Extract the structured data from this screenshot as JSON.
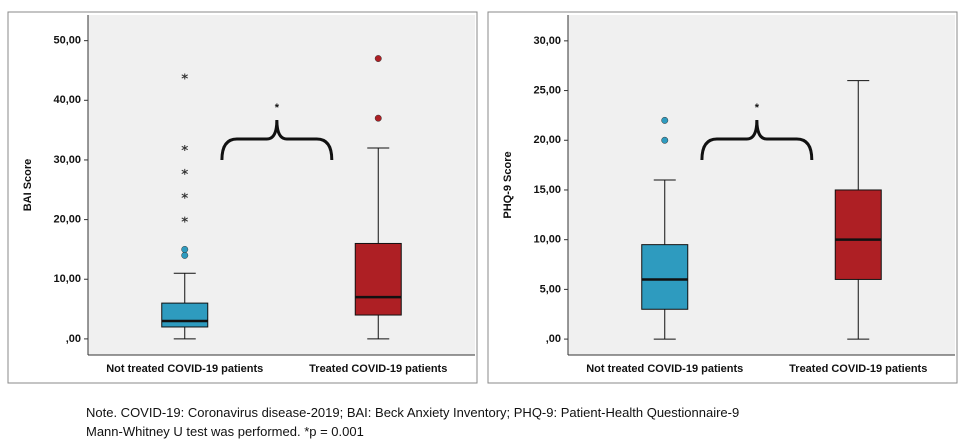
{
  "chart_data": [
    {
      "type": "box",
      "ylabel": "BAI Score",
      "categories": [
        "Not treated COVID-19 patients",
        "Treated COVID-19 patients"
      ],
      "colors": [
        "#2e9bbf",
        "#ae1f24"
      ],
      "ylim": [
        -2.7,
        54.3
      ],
      "yticks": [
        {
          "value": 0,
          "label": ",00"
        },
        {
          "value": 10,
          "label": "10,00"
        },
        {
          "value": 20,
          "label": "20,00"
        },
        {
          "value": 30,
          "label": "30,00"
        },
        {
          "value": 40,
          "label": "40,00"
        },
        {
          "value": 50,
          "label": "50,00"
        }
      ],
      "boxes": [
        {
          "low": 0,
          "q1": 2,
          "median": 3,
          "q3": 6,
          "high": 11,
          "outliers": [
            14,
            15
          ],
          "extremes": [
            20,
            24,
            28,
            32,
            44
          ]
        },
        {
          "low": 0,
          "q1": 4,
          "median": 7,
          "q3": 16,
          "high": 32,
          "outliers": [
            37,
            47
          ]
        }
      ],
      "annotation": "*"
    },
    {
      "type": "box",
      "ylabel": "PHQ-9 Score",
      "categories": [
        "Not treated COVID-19 patients",
        "Treated COVID-19 patients"
      ],
      "colors": [
        "#2e9bbf",
        "#ae1f24"
      ],
      "ylim": [
        -1.6,
        32.6
      ],
      "yticks": [
        {
          "value": 0,
          "label": ",00"
        },
        {
          "value": 5,
          "label": "5,00"
        },
        {
          "value": 10,
          "label": "10,00"
        },
        {
          "value": 15,
          "label": "15,00"
        },
        {
          "value": 20,
          "label": "20,00"
        },
        {
          "value": 25,
          "label": "25,00"
        },
        {
          "value": 30,
          "label": "30,00"
        }
      ],
      "boxes": [
        {
          "low": 0,
          "q1": 3,
          "median": 6,
          "q3": 9.5,
          "high": 16,
          "outliers": [
            20,
            22
          ]
        },
        {
          "low": 0,
          "q1": 6,
          "median": 10,
          "q3": 15,
          "high": 26
        }
      ],
      "annotation": "*"
    }
  ],
  "note": [
    "Note. COVID-19: Coronavirus disease-2019; BAI: Beck Anxiety Inventory; PHQ-9: Patient-Health Questionnaire-9",
    "Mann-Whitney U test was performed. *p = 0.001"
  ]
}
